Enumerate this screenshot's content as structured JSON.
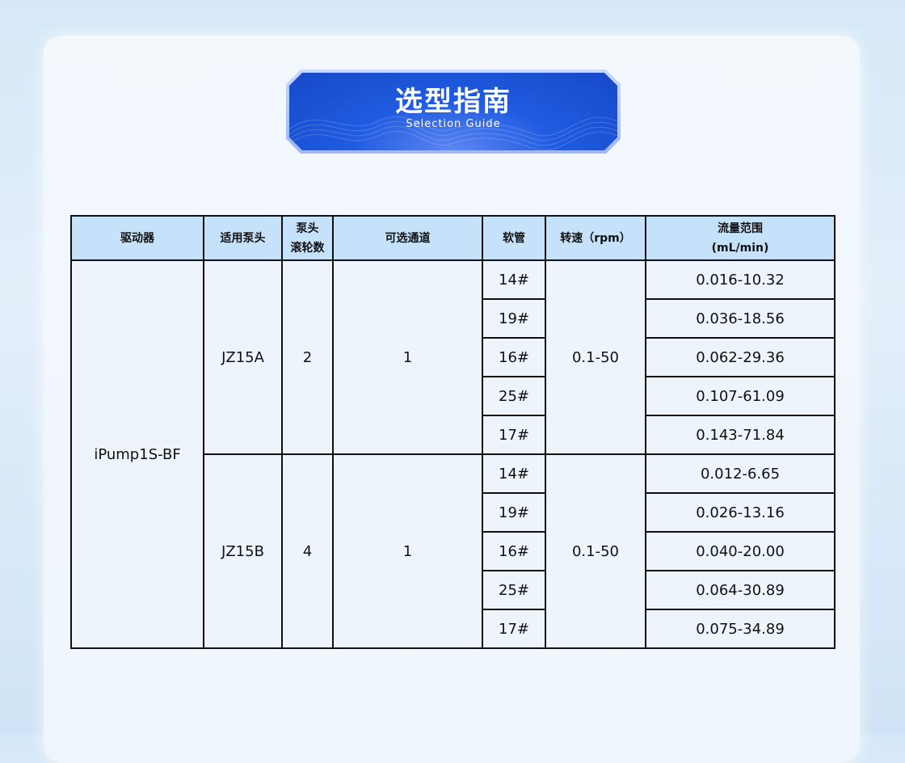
{
  "banner": {
    "title": "选型指南",
    "subtitle": "Selection Guide"
  },
  "table": {
    "headers": [
      "驱动器",
      "适用泵头",
      "泵头滚轮数",
      "可选通道",
      "软管",
      "转速（rpm）",
      "流量范围(mL/min)"
    ],
    "header_lines": {
      "rollers_1": "泵头",
      "rollers_2": "滚轮数",
      "flow_1": "流量范围",
      "flow_2": "(mL/min)"
    },
    "driver": "iPump1S-BF",
    "groups": [
      {
        "pump_head": "JZ15A",
        "rollers": "2",
        "channels": "1",
        "speed": "0.1-50",
        "rows": [
          {
            "tube": "14#",
            "flow": "0.016-10.32"
          },
          {
            "tube": "19#",
            "flow": "0.036-18.56"
          },
          {
            "tube": "16#",
            "flow": "0.062-29.36"
          },
          {
            "tube": "25#",
            "flow": "0.107-61.09"
          },
          {
            "tube": "17#",
            "flow": "0.143-71.84"
          }
        ]
      },
      {
        "pump_head": "JZ15B",
        "rollers": "4",
        "channels": "1",
        "speed": "0.1-50",
        "rows": [
          {
            "tube": "14#",
            "flow": "0.012-6.65"
          },
          {
            "tube": "19#",
            "flow": "0.026-13.16"
          },
          {
            "tube": "16#",
            "flow": "0.040-20.00"
          },
          {
            "tube": "25#",
            "flow": "0.064-30.89"
          },
          {
            "tube": "17#",
            "flow": "0.075-34.89"
          }
        ]
      }
    ]
  }
}
